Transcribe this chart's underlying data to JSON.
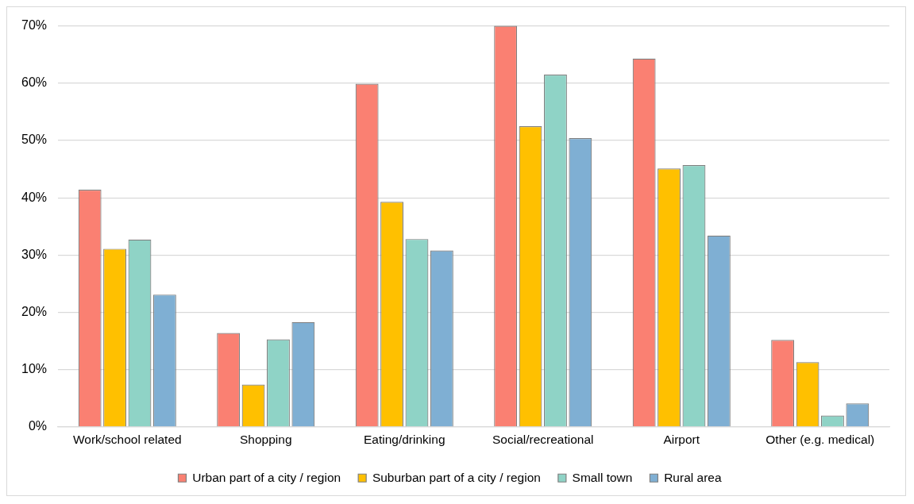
{
  "chart_data": {
    "type": "bar",
    "categories": [
      "Work/school related",
      "Shopping",
      "Eating/drinking",
      "Social/recreational",
      "Airport",
      "Other (e.g. medical)"
    ],
    "series": [
      {
        "name": "Urban part of a city / region",
        "color": "#fa8072",
        "values": [
          41.4,
          16.4,
          59.9,
          70.0,
          64.3,
          15.2
        ]
      },
      {
        "name": "Suburban part of a city / region",
        "color": "#ffc000",
        "values": [
          31.1,
          7.4,
          39.3,
          52.5,
          45.1,
          11.3
        ]
      },
      {
        "name": "Small town",
        "color": "#8fd3c6",
        "values": [
          32.7,
          15.3,
          32.8,
          61.5,
          45.7,
          2.0
        ]
      },
      {
        "name": "Rural area",
        "color": "#7fafd3",
        "values": [
          23.1,
          18.3,
          30.8,
          50.4,
          33.4,
          4.1
        ]
      }
    ],
    "ylim": [
      0,
      70
    ],
    "yticks": [
      {
        "value": 0,
        "label": "0%"
      },
      {
        "value": 10,
        "label": "10%"
      },
      {
        "value": 20,
        "label": "20%"
      },
      {
        "value": 30,
        "label": "30%"
      },
      {
        "value": 40,
        "label": "40%"
      },
      {
        "value": 50,
        "label": "50%"
      },
      {
        "value": 60,
        "label": "60%"
      },
      {
        "value": 70,
        "label": "70%"
      }
    ],
    "grid": "y",
    "legend": "bottom"
  }
}
